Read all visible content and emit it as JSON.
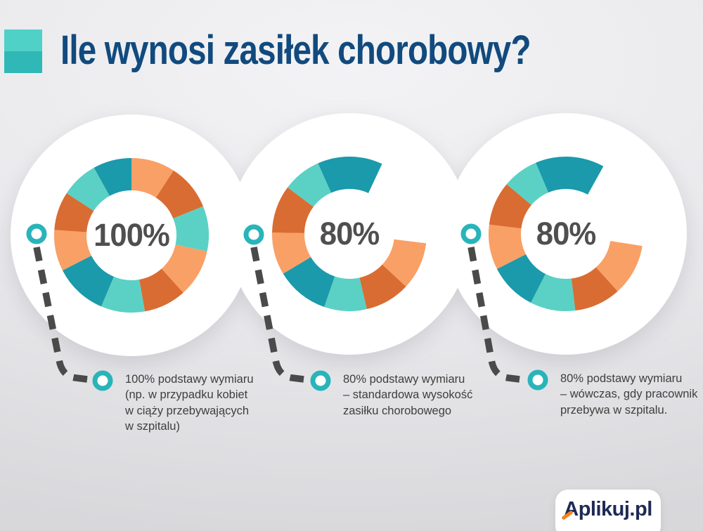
{
  "header": {
    "title": "Ile wynosi zasiłek chorobowy?"
  },
  "palette": {
    "bg_light": "#f3f3f5",
    "bg_mid": "#e9e9ec",
    "bg_dark": "#d8d8db",
    "title_navy": "#114a7e",
    "square_top": "#4fd1c7",
    "square_bottom": "#2fb8b6",
    "light_orange": "#f9a066",
    "dark_orange": "#d96c32",
    "light_teal": "#5ad1c4",
    "dark_teal": "#1a9aab",
    "label_gray": "#4f4f4f",
    "note_text": "#3e3e3e",
    "connector_gray": "#4a4a4a",
    "ring_teal": "#29b4ba",
    "logo_navy": "#1d2a55",
    "logo_orange": "#f5821f"
  },
  "chart_data": [
    {
      "type": "donut",
      "center_label": "100%",
      "percent_shown": 100,
      "caption": "100% podstawy wymiaru (np. w przypadku kobiet w ciąży przebywających w szpitalu)",
      "outer_radius": 110,
      "inner_radius": 64,
      "segments": [
        {
          "color": "light_orange",
          "start": 0,
          "end": 33
        },
        {
          "color": "dark_orange",
          "start": 33,
          "end": 68
        },
        {
          "color": "light_teal",
          "start": 68,
          "end": 102
        },
        {
          "color": "light_orange",
          "start": 102,
          "end": 138
        },
        {
          "color": "dark_orange",
          "start": 138,
          "end": 170
        },
        {
          "color": "light_teal",
          "start": 170,
          "end": 203
        },
        {
          "color": "dark_teal",
          "start": 203,
          "end": 243
        },
        {
          "color": "light_orange",
          "start": 243,
          "end": 274
        },
        {
          "color": "dark_orange",
          "start": 274,
          "end": 303
        },
        {
          "color": "light_teal",
          "start": 303,
          "end": 331
        },
        {
          "color": "dark_teal",
          "start": 331,
          "end": 360
        }
      ]
    },
    {
      "type": "donut",
      "center_label": "80%",
      "percent_shown": 80,
      "caption": "80% podstawy wymiaru – standardowa wysokość zasiłku chorobowego",
      "outer_radius": 110,
      "inner_radius": 64,
      "gap": {
        "start": 25,
        "end": 97
      },
      "segments": [
        {
          "color": "dark_teal",
          "start": 336,
          "end": 385
        },
        {
          "color": "light_orange",
          "start": 97,
          "end": 133
        },
        {
          "color": "dark_orange",
          "start": 133,
          "end": 167
        },
        {
          "color": "light_teal",
          "start": 167,
          "end": 199
        },
        {
          "color": "dark_teal",
          "start": 199,
          "end": 239
        },
        {
          "color": "light_orange",
          "start": 239,
          "end": 271
        },
        {
          "color": "dark_orange",
          "start": 271,
          "end": 307
        },
        {
          "color": "light_teal",
          "start": 307,
          "end": 336
        }
      ]
    },
    {
      "type": "donut",
      "center_label": "80%",
      "percent_shown": 80,
      "caption": "80% podstawy wymiaru – wówczas, gdy pracownik przebywa w szpitalu.",
      "outer_radius": 110,
      "inner_radius": 64,
      "gap": {
        "start": 29,
        "end": 99
      },
      "segments": [
        {
          "color": "dark_teal",
          "start": 337,
          "end": 389
        },
        {
          "color": "light_orange",
          "start": 99,
          "end": 138
        },
        {
          "color": "dark_orange",
          "start": 138,
          "end": 173
        },
        {
          "color": "light_teal",
          "start": 173,
          "end": 207
        },
        {
          "color": "dark_teal",
          "start": 207,
          "end": 243
        },
        {
          "color": "light_orange",
          "start": 243,
          "end": 277
        },
        {
          "color": "dark_orange",
          "start": 277,
          "end": 310
        },
        {
          "color": "light_teal",
          "start": 310,
          "end": 337
        }
      ]
    }
  ],
  "notes": [
    {
      "lines": [
        "100% podstawy wymiaru",
        "(np. w przypadku kobiet",
        "w ciąży przebywających",
        "w szpitalu)"
      ]
    },
    {
      "lines": [
        "80% podstawy wymiaru",
        "– standardowa wysokość",
        "zasiłku chorobowego"
      ]
    },
    {
      "lines": [
        "80% podstawy wymiaru",
        "– wówczas, gdy pracownik",
        "przebywa w szpitalu."
      ]
    }
  ],
  "logo": {
    "letter_accent": "A",
    "text_rest": "plikuj.pl"
  }
}
